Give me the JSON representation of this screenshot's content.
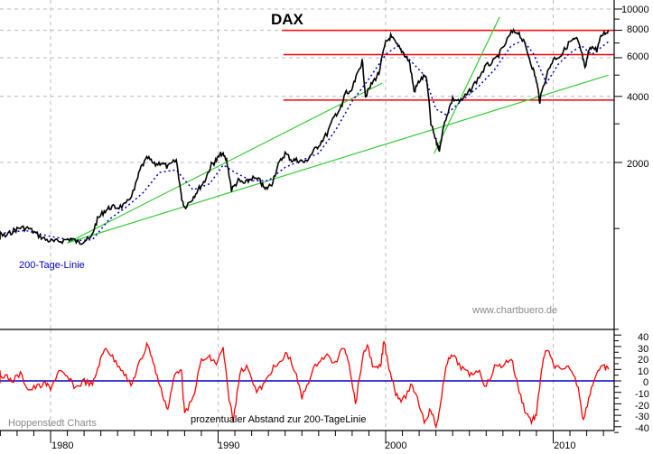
{
  "chart_data": [
    {
      "type": "line",
      "title": "DAX",
      "yscale": "log",
      "ylim": [
        1000,
        10000
      ],
      "yticks": [
        2000,
        4000,
        6000,
        8000,
        10000
      ],
      "xlim": [
        1975.7,
        2013.4
      ],
      "xticks": [
        1980,
        1990,
        2000,
        2010
      ],
      "xlabel": "",
      "ylabel": "",
      "grid": "dashed at year and price ticks",
      "series": [
        {
          "name": "DAX",
          "color": "#000000",
          "x": [
            1975.7,
            1976.3,
            1976.8,
            1977.3,
            1977.8,
            1978.2,
            1978.7,
            1979.2,
            1979.7,
            1980.2,
            1980.7,
            1981.2,
            1981.7,
            1982.0,
            1982.4,
            1982.8,
            1983.2,
            1983.6,
            1984.0,
            1984.5,
            1985.0,
            1985.4,
            1985.8,
            1986.2,
            1986.6,
            1987.0,
            1987.5,
            1987.8,
            1988.0,
            1988.4,
            1988.8,
            1989.2,
            1989.6,
            1989.9,
            1990.2,
            1990.5,
            1990.8,
            1991.2,
            1991.6,
            1992.0,
            1992.5,
            1992.8,
            1993.2,
            1993.6,
            1994.0,
            1994.4,
            1994.8,
            1995.2,
            1995.6,
            1996.0,
            1996.5,
            1997.0,
            1997.4,
            1997.6,
            1997.9,
            1998.3,
            1998.6,
            1998.8,
            1999.2,
            1999.6,
            2000.0,
            2000.3,
            2000.7,
            2001.0,
            2001.4,
            2001.7,
            2002.0,
            2002.4,
            2002.7,
            2003.0,
            2003.2,
            2003.6,
            2004.0,
            2004.5,
            2005.0,
            2005.5,
            2006.0,
            2006.5,
            2007.0,
            2007.5,
            2007.9,
            2008.3,
            2008.7,
            2009.0,
            2009.2,
            2009.6,
            2010.0,
            2010.5,
            2011.0,
            2011.4,
            2011.7,
            2011.9,
            2012.2,
            2012.6,
            2012.9,
            2013.3
          ],
          "y": [
            890,
            940,
            960,
            920,
            980,
            1010,
            1000,
            940,
            890,
            870,
            880,
            900,
            860,
            880,
            900,
            1100,
            1200,
            1250,
            1250,
            1280,
            1500,
            1900,
            2100,
            1950,
            2000,
            1900,
            2050,
            1400,
            1250,
            1350,
            1500,
            1650,
            1950,
            2050,
            2200,
            2050,
            1500,
            1650,
            1600,
            1700,
            1650,
            1500,
            1600,
            1950,
            2200,
            2050,
            2050,
            2000,
            2200,
            2400,
            2700,
            3300,
            3600,
            4200,
            4100,
            5000,
            5800,
            4000,
            4600,
            5100,
            7000,
            7500,
            6800,
            6400,
            5800,
            4200,
            4700,
            5000,
            3000,
            2500,
            2300,
            3200,
            3900,
            3800,
            4200,
            4800,
            5500,
            5800,
            6600,
            7800,
            7900,
            6900,
            5600,
            4700,
            3800,
            5000,
            5900,
            6200,
            7100,
            7300,
            6300,
            5300,
            6800,
            6500,
            7600,
            8000
          ]
        },
        {
          "name": "200-Tage-Linie",
          "color": "#0000cc",
          "style": "dotted",
          "x": [
            1975.7,
            1977.0,
            1978.5,
            1980.0,
            1981.5,
            1982.5,
            1983.5,
            1984.5,
            1985.5,
            1986.5,
            1987.5,
            1988.5,
            1989.5,
            1990.3,
            1991.0,
            1992.0,
            1993.0,
            1994.0,
            1995.0,
            1996.0,
            1997.0,
            1998.0,
            1999.0,
            2000.0,
            2000.7,
            2001.5,
            2002.3,
            2003.0,
            2003.6,
            2004.5,
            2005.5,
            2006.5,
            2007.5,
            2008.2,
            2008.8,
            2009.6,
            2010.3,
            2011.0,
            2011.7,
            2012.3,
            2013.3
          ],
          "y": [
            900,
            950,
            980,
            920,
            880,
            890,
            1100,
            1250,
            1450,
            1800,
            1850,
            1500,
            1600,
            1950,
            1800,
            1650,
            1650,
            1900,
            2050,
            2200,
            2800,
            3800,
            4800,
            6200,
            6800,
            5800,
            5000,
            3500,
            3300,
            3800,
            4400,
            5300,
            6800,
            7200,
            6300,
            4600,
            5600,
            6300,
            6800,
            6200,
            7100
          ]
        }
      ],
      "annotations": {
        "horizontal_lines": [
          {
            "value": 8000,
            "color": "#ff0000",
            "x_start": 1993.8
          },
          {
            "value": 6200,
            "color": "#ff0000",
            "x_start": 1993.9
          },
          {
            "value": 3850,
            "color": "#ff0000",
            "x_start": 1993.9
          }
        ],
        "trend_lines": [
          {
            "color": "#33cc33",
            "from": [
              1981.0,
              860
            ],
            "to": [
              1999.8,
              4600
            ]
          },
          {
            "color": "#33cc33",
            "from": [
              1981.0,
              860
            ],
            "to": [
              2013.3,
              5000
            ]
          },
          {
            "color": "#33cc33",
            "from": [
              2002.9,
              2200
            ],
            "to": [
              2006.8,
              9200
            ]
          }
        ],
        "labels": [
          {
            "text": "200-Tage-Linie",
            "color": "#0000cc"
          },
          {
            "text": "www.chartbuero.de",
            "color": "#888888"
          }
        ]
      }
    },
    {
      "type": "line",
      "title": "prozentualer Abstand zur 200-TageLinie",
      "ylim": [
        -45,
        45
      ],
      "yticks": [
        40,
        30,
        20,
        10,
        0,
        -10,
        -20,
        -30,
        -40
      ],
      "xticks": [
        1980,
        1990,
        2000,
        2010
      ],
      "series": [
        {
          "name": "Abstand zur 200-Tage-Linie (%)",
          "color": "#ff0000",
          "x": [
            1975.7,
            1976.2,
            1976.7,
            1977.2,
            1977.7,
            1978.2,
            1978.7,
            1979.2,
            1979.7,
            1980.0,
            1980.5,
            1981.0,
            1981.5,
            1982.0,
            1982.5,
            1982.9,
            1983.3,
            1983.8,
            1984.3,
            1984.8,
            1985.2,
            1985.5,
            1985.8,
            1986.2,
            1986.6,
            1987.0,
            1987.4,
            1987.8,
            1988.0,
            1988.5,
            1989.0,
            1989.5,
            1989.9,
            1990.3,
            1990.6,
            1990.9,
            1991.3,
            1991.8,
            1992.3,
            1992.8,
            1993.2,
            1993.7,
            1994.1,
            1994.6,
            1995.0,
            1995.5,
            1996.0,
            1996.5,
            1997.0,
            1997.5,
            1997.8,
            1998.2,
            1998.6,
            1998.9,
            1999.3,
            1999.7,
            1999.9,
            2000.2,
            2000.6,
            2001.0,
            2001.5,
            2001.8,
            2002.3,
            2002.7,
            2003.0,
            2003.3,
            2003.6,
            2004.0,
            2004.5,
            2005.0,
            2005.5,
            2006.0,
            2006.5,
            2007.0,
            2007.5,
            2007.9,
            2008.3,
            2008.7,
            2009.0,
            2009.3,
            2009.6,
            2010.0,
            2010.5,
            2011.0,
            2011.5,
            2011.8,
            2012.2,
            2012.6,
            2013.0,
            2013.3
          ],
          "y": [
            -3,
            8,
            7,
            5,
            0,
            6,
            -8,
            -5,
            -3,
            -6,
            8,
            3,
            -6,
            0,
            -4,
            15,
            30,
            18,
            10,
            -5,
            12,
            22,
            33,
            12,
            -8,
            -25,
            5,
            12,
            -30,
            -15,
            18,
            20,
            15,
            28,
            -10,
            -35,
            8,
            12,
            -10,
            -2,
            10,
            15,
            25,
            8,
            -15,
            4,
            18,
            22,
            15,
            30,
            18,
            -20,
            18,
            32,
            10,
            12,
            35,
            12,
            -10,
            -18,
            -5,
            -10,
            -35,
            -25,
            -40,
            -20,
            15,
            22,
            12,
            5,
            10,
            -5,
            12,
            14,
            20,
            -5,
            -25,
            -35,
            -30,
            10,
            28,
            15,
            8,
            12,
            -5,
            -35,
            -10,
            8,
            12,
            10
          ]
        },
        {
          "name": "zero line",
          "color": "#0000cc",
          "value": 0
        }
      ]
    }
  ],
  "header": {
    "title": "DAX"
  },
  "upper_panel": {
    "y_tick_labels": [
      "10000",
      "8000",
      "6000",
      "4000",
      "2000"
    ],
    "ma_label": "200-Tage-Linie",
    "watermark": "www.chartbuero.de"
  },
  "lower_panel": {
    "y_tick_labels": [
      "40",
      "30",
      "20",
      "10",
      "0",
      "-10",
      "-20",
      "-30",
      "-40"
    ],
    "caption": "prozentualer Abstand zur 200-TageLinie",
    "source": "Hoppenstedt Charts"
  },
  "x_axis": {
    "tick_labels": [
      "1980",
      "1990",
      "2000",
      "2010"
    ]
  },
  "colors": {
    "price": "#000000",
    "moving_average": "#0000cc",
    "resistance": "#ff0000",
    "trend": "#33cc33",
    "oscillator": "#ff0000",
    "zero_line": "#0000cc",
    "grid": "#bbbbbb"
  }
}
